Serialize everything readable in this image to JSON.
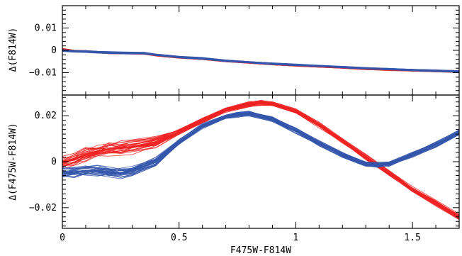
{
  "chart_data": [
    {
      "type": "line",
      "panel": "top",
      "xlabel": "",
      "ylabel": "Δ(F814W)",
      "xlim": [
        0,
        1.7
      ],
      "ylim": [
        -0.02,
        0.02
      ],
      "x_ticks": [
        0,
        0.5,
        1,
        1.5
      ],
      "y_ticks": [
        0.01,
        0,
        -0.01
      ],
      "y_tick_labels": [
        "0.01",
        "0",
        "−0.01"
      ],
      "colors": {
        "red": "#ee2222",
        "blue": "#3355aa"
      },
      "series": [
        {
          "color": "red",
          "x": [
            0,
            0.05,
            0.1,
            0.15,
            0.2,
            0.3,
            0.35,
            0.4,
            0.5,
            0.6,
            0.7,
            0.8,
            0.9,
            1.0,
            1.1,
            1.2,
            1.3,
            1.4,
            1.5,
            1.6,
            1.7
          ],
          "y": [
            0.0005,
            -0.0003,
            -0.0005,
            -0.0008,
            -0.0012,
            -0.0013,
            -0.0014,
            -0.0022,
            -0.0032,
            -0.0038,
            -0.0048,
            -0.0055,
            -0.0062,
            -0.0067,
            -0.0072,
            -0.0077,
            -0.0083,
            -0.0086,
            -0.009,
            -0.0093,
            -0.0096
          ]
        },
        {
          "color": "blue",
          "x": [
            0,
            0.05,
            0.1,
            0.15,
            0.2,
            0.3,
            0.35,
            0.4,
            0.5,
            0.6,
            0.7,
            0.8,
            0.9,
            1.0,
            1.1,
            1.2,
            1.3,
            1.4,
            1.5,
            1.6,
            1.7
          ],
          "y": [
            0.0,
            -0.0004,
            -0.0005,
            -0.0008,
            -0.001,
            -0.0012,
            -0.0013,
            -0.002,
            -0.003,
            -0.0036,
            -0.0046,
            -0.0053,
            -0.006,
            -0.0065,
            -0.007,
            -0.0075,
            -0.008,
            -0.0084,
            -0.0088,
            -0.0091,
            -0.0094
          ]
        }
      ]
    },
    {
      "type": "line",
      "panel": "bottom",
      "xlabel": "F475W-F814W",
      "ylabel": "Δ(F475W-F814W)",
      "xlim": [
        0,
        1.7
      ],
      "ylim": [
        -0.029,
        0.029
      ],
      "x_ticks": [
        0,
        0.5,
        1,
        1.5
      ],
      "x_tick_labels": [
        "0",
        "0.5",
        "1",
        "1.5"
      ],
      "y_ticks": [
        0.02,
        0,
        -0.02
      ],
      "y_tick_labels": [
        "0.02",
        "0",
        "−0.02"
      ],
      "series": [
        {
          "color": "red",
          "x": [
            0,
            0.05,
            0.1,
            0.15,
            0.2,
            0.25,
            0.3,
            0.4,
            0.5,
            0.6,
            0.7,
            0.8,
            0.85,
            0.9,
            1.0,
            1.1,
            1.2,
            1.3,
            1.4,
            1.5,
            1.6,
            1.7
          ],
          "y": [
            -0.0005,
            0.001,
            0.003,
            0.0045,
            0.0055,
            0.006,
            0.0065,
            0.0085,
            0.013,
            0.018,
            0.0225,
            0.025,
            0.0255,
            0.025,
            0.022,
            0.016,
            0.009,
            0.002,
            -0.005,
            -0.012,
            -0.018,
            -0.024
          ]
        },
        {
          "color": "blue",
          "x": [
            0,
            0.05,
            0.1,
            0.15,
            0.2,
            0.25,
            0.3,
            0.4,
            0.5,
            0.6,
            0.7,
            0.75,
            0.8,
            0.9,
            1.0,
            1.1,
            1.2,
            1.3,
            1.35,
            1.4,
            1.5,
            1.6,
            1.7
          ],
          "y": [
            -0.005,
            -0.0045,
            -0.004,
            -0.004,
            -0.0045,
            -0.005,
            -0.004,
            0.0,
            0.0085,
            0.0155,
            0.0195,
            0.0205,
            0.021,
            0.0185,
            0.0135,
            0.008,
            0.003,
            -0.001,
            -0.0015,
            -0.001,
            0.003,
            0.0075,
            0.0125
          ]
        }
      ]
    }
  ]
}
